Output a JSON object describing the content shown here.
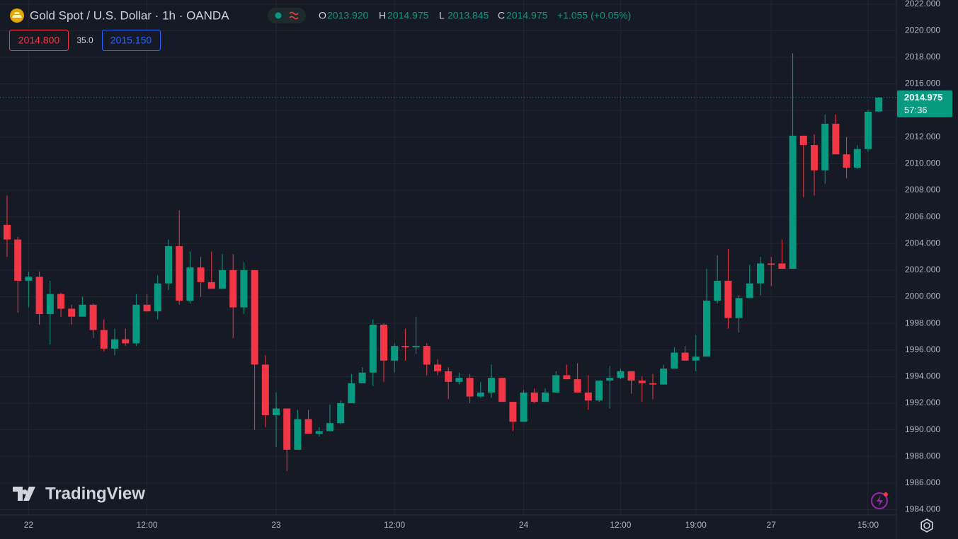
{
  "chart_data": {
    "type": "candlestick",
    "title": "Gold Spot / U.S. Dollar · 1h · OANDA",
    "legend_ohlc": [
      {
        "label": "O",
        "value": "2013.920"
      },
      {
        "label": "H",
        "value": "2014.975"
      },
      {
        "label": "L",
        "value": "2013.845"
      },
      {
        "label": "C",
        "value": "2014.975"
      }
    ],
    "change": "+1.055 (+0.05%)",
    "categories": [
      null,
      null,
      "22",
      null,
      null,
      null,
      null,
      null,
      null,
      null,
      null,
      null,
      null,
      "12:00",
      null,
      null,
      null,
      null,
      null,
      null,
      null,
      null,
      null,
      null,
      null,
      "23",
      null,
      null,
      null,
      null,
      null,
      null,
      null,
      null,
      null,
      null,
      "12:00",
      null,
      null,
      null,
      null,
      null,
      null,
      null,
      null,
      null,
      null,
      null,
      "24",
      null,
      null,
      null,
      null,
      null,
      null,
      null,
      null,
      "12:00",
      null,
      null,
      null,
      null,
      null,
      null,
      "19:00",
      null,
      null,
      null,
      null,
      null,
      null,
      "27",
      null,
      null,
      null,
      null,
      null,
      null,
      null,
      null,
      "15:00",
      null
    ],
    "open": [
      2005.4,
      2004.3,
      2001.2,
      2001.5,
      1998.7,
      2000.2,
      1999.1,
      1998.5,
      1999.4,
      1997.5,
      1996.1,
      1996.8,
      1996.5,
      1999.4,
      1998.9,
      2001.0,
      2003.8,
      1999.7,
      2002.2,
      2001.1,
      2000.6,
      2002.0,
      1999.2,
      2002.0,
      1994.9,
      1991.1,
      1991.6,
      1988.5,
      1990.8,
      1989.7,
      1989.9,
      1990.5,
      1992.0,
      1993.5,
      1994.3,
      1997.9,
      1995.2,
      1996.3,
      1996.2,
      1996.3,
      1994.9,
      1994.4,
      1993.6,
      1993.9,
      1992.5,
      1992.8,
      1993.9,
      1992.1,
      1990.6,
      1992.8,
      1992.1,
      1992.8,
      1994.1,
      1993.8,
      1992.8,
      1992.2,
      1993.7,
      1993.9,
      1994.4,
      1993.7,
      1993.5,
      1993.4,
      1994.6,
      1995.8,
      1995.2,
      1995.5,
      1999.7,
      2001.2,
      1998.4,
      1999.9,
      2001.0,
      2002.5,
      2002.5,
      2002.1,
      2012.1,
      2011.4,
      2009.5,
      2013.0,
      2010.7,
      2009.7,
      2011.1,
      2013.92
    ],
    "high": [
      2007.6,
      2004.5,
      2001.9,
      2001.9,
      2001.2,
      2000.3,
      1999.4,
      2000.0,
      1999.5,
      1998.3,
      1997.6,
      1997.6,
      2000.2,
      2000.2,
      2001.6,
      2004.3,
      2006.5,
      2003.4,
      2003.0,
      2003.4,
      2003.2,
      2003.2,
      2002.6,
      2002.0,
      1995.6,
      1992.8,
      1991.6,
      1991.5,
      1991.5,
      1990.2,
      1991.9,
      1992.2,
      1994.2,
      1994.7,
      1998.3,
      1998.0,
      1996.5,
      1997.6,
      1998.5,
      1996.5,
      1995.3,
      1994.7,
      1994.3,
      1994.2,
      1993.6,
      1994.9,
      1993.9,
      1992.1,
      1993.0,
      1993.1,
      1993.1,
      1994.4,
      1994.9,
      1995.0,
      1994.1,
      1993.7,
      1994.8,
      1994.6,
      1994.4,
      1994.0,
      1994.2,
      1994.9,
      1996.2,
      1996.3,
      1997.1,
      2002.1,
      2003.1,
      2003.6,
      2000.1,
      2002.4,
      2003.0,
      2003.0,
      2004.3,
      2018.3,
      2012.1,
      2012.2,
      2013.7,
      2013.7,
      2012.0,
      2011.4,
      2014.0,
      2014.975
    ],
    "low": [
      2003.0,
      1998.8,
      1999.2,
      1997.9,
      1996.4,
      1998.5,
      1997.9,
      1998.5,
      1996.9,
      1995.9,
      1995.6,
      1996.3,
      1996.3,
      1998.9,
      1998.3,
      2000.5,
      1999.4,
      1999.5,
      2000.0,
      2000.6,
      2000.6,
      1996.9,
      1998.7,
      1990.0,
      1990.2,
      1988.7,
      1986.9,
      1988.5,
      1989.7,
      1989.5,
      1989.9,
      1990.4,
      1992.0,
      1993.5,
      1993.3,
      1993.6,
      1994.3,
      1995.2,
      1995.7,
      1994.1,
      1994.1,
      1992.3,
      1993.4,
      1992.0,
      1992.4,
      1992.4,
      1992.1,
      1989.9,
      1990.6,
      1992.0,
      1992.1,
      1992.8,
      1993.8,
      1992.8,
      1991.5,
      1992.1,
      1991.6,
      1993.8,
      1992.7,
      1992.1,
      1992.3,
      1993.4,
      1994.6,
      1995.2,
      1994.4,
      1995.5,
      1999.5,
      1997.6,
      1997.3,
      1999.9,
      2000.1,
      2000.8,
      2002.1,
      2002.1,
      2007.5,
      2007.6,
      2008.5,
      2010.7,
      2008.9,
      2009.6,
      2010.9,
      2013.845
    ],
    "close": [
      2004.3,
      2001.2,
      2001.5,
      1998.7,
      2000.2,
      1999.1,
      1998.5,
      1999.4,
      1997.5,
      1996.1,
      1996.8,
      1996.5,
      1999.4,
      1998.9,
      2001.0,
      2003.8,
      1999.7,
      2002.2,
      2001.1,
      2000.6,
      2002.0,
      1999.2,
      2002.0,
      1994.9,
      1991.1,
      1991.6,
      1988.5,
      1990.8,
      1989.7,
      1989.9,
      1990.5,
      1992.0,
      1993.5,
      1994.3,
      1997.9,
      1995.2,
      1996.3,
      1996.2,
      1996.3,
      1994.9,
      1994.4,
      1993.6,
      1993.9,
      1992.5,
      1992.8,
      1993.9,
      1992.1,
      1990.6,
      1992.8,
      1992.1,
      1992.8,
      1994.1,
      1993.8,
      1992.8,
      1992.2,
      1993.7,
      1993.9,
      1994.4,
      1993.7,
      1993.5,
      1993.4,
      1994.6,
      1995.8,
      1995.2,
      1995.5,
      1999.7,
      2001.2,
      1998.4,
      1999.9,
      2001.0,
      2002.5,
      2002.4,
      2002.1,
      2012.1,
      2011.4,
      2009.5,
      2013.0,
      2010.7,
      2009.7,
      2011.1,
      2013.9,
      2014.975
    ],
    "up_color": "#089981",
    "down_color": "#f23645",
    "ylim": [
      1983.6,
      2022.3
    ],
    "yticks": [
      {
        "value": 2022,
        "label": "2022.000"
      },
      {
        "value": 2020,
        "label": "2020.000"
      },
      {
        "value": 2018,
        "label": "2018.000"
      },
      {
        "value": 2016,
        "label": "2016.000"
      },
      {
        "value": 2014,
        "label": "2014.000"
      },
      {
        "value": 2012,
        "label": "2012.000"
      },
      {
        "value": 2010,
        "label": "2010.000"
      },
      {
        "value": 2008,
        "label": "2008.000"
      },
      {
        "value": 2006,
        "label": "2006.000"
      },
      {
        "value": 2004,
        "label": "2004.000"
      },
      {
        "value": 2002,
        "label": "2002.000"
      },
      {
        "value": 2000,
        "label": "2000.000"
      },
      {
        "value": 1998,
        "label": "1998.000"
      },
      {
        "value": 1996,
        "label": "1996.000"
      },
      {
        "value": 1994,
        "label": "1994.000"
      },
      {
        "value": 1992,
        "label": "1992.000"
      },
      {
        "value": 1990,
        "label": "1990.000"
      },
      {
        "value": 1988,
        "label": "1988.000"
      },
      {
        "value": 1986,
        "label": "1986.000"
      },
      {
        "value": 1984,
        "label": "1984.000"
      }
    ],
    "grid": true,
    "last_price": {
      "value": 2014.975,
      "label": "2014.975"
    },
    "countdown": "57:36"
  },
  "header": {
    "sell_price": "2014.800",
    "spread": "35.0",
    "buy_price": "2015.150"
  },
  "watermark": "TradingView"
}
